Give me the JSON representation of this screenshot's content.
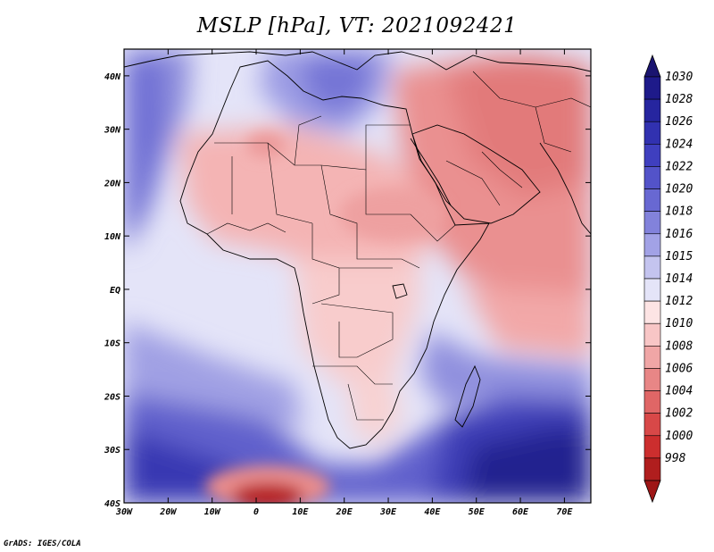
{
  "title": "MSLP [hPa], VT: 2021092421",
  "credit": "GrADS: IGES/COLA",
  "map": {
    "lon_range": [
      -30,
      76
    ],
    "lat_range": [
      -40,
      45
    ],
    "lon_ticks": [
      {
        "value": -30,
        "label": "30W"
      },
      {
        "value": -20,
        "label": "20W"
      },
      {
        "value": -10,
        "label": "10W"
      },
      {
        "value": 0,
        "label": "0"
      },
      {
        "value": 10,
        "label": "10E"
      },
      {
        "value": 20,
        "label": "20E"
      },
      {
        "value": 30,
        "label": "30E"
      },
      {
        "value": 40,
        "label": "40E"
      },
      {
        "value": 50,
        "label": "50E"
      },
      {
        "value": 60,
        "label": "60E"
      },
      {
        "value": 70,
        "label": "70E"
      }
    ],
    "lat_ticks": [
      {
        "value": 40,
        "label": "40N"
      },
      {
        "value": 30,
        "label": "30N"
      },
      {
        "value": 20,
        "label": "20N"
      },
      {
        "value": 10,
        "label": "10N"
      },
      {
        "value": 0,
        "label": "EQ"
      },
      {
        "value": -10,
        "label": "10S"
      },
      {
        "value": -20,
        "label": "20S"
      },
      {
        "value": -30,
        "label": "30S"
      },
      {
        "value": -40,
        "label": "40S"
      }
    ]
  },
  "colorbar": {
    "levels": [
      {
        "label": "1030",
        "color": "#1e1a8a"
      },
      {
        "label": "1028",
        "color": "#26259f"
      },
      {
        "label": "1026",
        "color": "#3131b0"
      },
      {
        "label": "1024",
        "color": "#3f3fbf"
      },
      {
        "label": "1022",
        "color": "#5353c9"
      },
      {
        "label": "1020",
        "color": "#6868d2"
      },
      {
        "label": "1018",
        "color": "#8282db"
      },
      {
        "label": "1016",
        "color": "#a2a2e6"
      },
      {
        "label": "1015",
        "color": "#c4c4ef"
      },
      {
        "label": "1014",
        "color": "#e4e4f8"
      },
      {
        "label": "1012",
        "color": "#fde4e4"
      },
      {
        "label": "1010",
        "color": "#f8c6c6"
      },
      {
        "label": "1008",
        "color": "#f0a6a6"
      },
      {
        "label": "1006",
        "color": "#e88686"
      },
      {
        "label": "1004",
        "color": "#e06666"
      },
      {
        "label": "1002",
        "color": "#d84848"
      },
      {
        "label": "1000",
        "color": "#cc2e2e"
      },
      {
        "label": "998",
        "color": "#b01e1e"
      }
    ],
    "top_color": "#1a1470",
    "bottom_color": "#9e1616"
  },
  "background_color": "#e4e4f8"
}
